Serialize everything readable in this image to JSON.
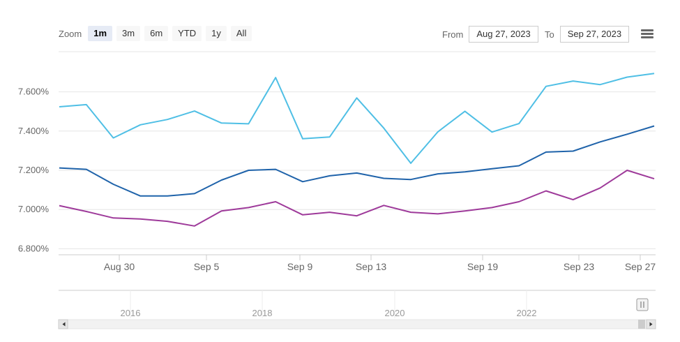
{
  "toolbar": {
    "zoom_label": "Zoom",
    "buttons": [
      "1m",
      "3m",
      "6m",
      "YTD",
      "1y",
      "All"
    ],
    "active": "1m",
    "from_label": "From",
    "from_value": "Aug 27, 2023",
    "to_label": "To",
    "to_value": "Sep 27, 2023",
    "menu_icon": "hamburger-menu-icon"
  },
  "chart_data": {
    "type": "line",
    "ylim": [
      6.8,
      7.8
    ],
    "yticks": [
      "6.800%",
      "7.000%",
      "7.200%",
      "7.400%",
      "7.600%"
    ],
    "ytick_values": [
      6.8,
      7.0,
      7.2,
      7.4,
      7.6
    ],
    "xticks": [
      "Aug 30",
      "Sep 5",
      "Sep 9",
      "Sep 13",
      "Sep 19",
      "Sep 23",
      "Sep 27"
    ],
    "grid": true,
    "series": [
      {
        "color": "#4fbfe5",
        "values": [
          7.524,
          7.535,
          7.365,
          7.432,
          7.459,
          7.502,
          7.441,
          7.437,
          7.673,
          7.361,
          7.37,
          7.569,
          7.415,
          7.236,
          7.396,
          7.501,
          7.395,
          7.438,
          7.628,
          7.655,
          7.637,
          7.675,
          7.694
        ]
      },
      {
        "color": "#1f63aa",
        "values": [
          7.212,
          7.205,
          7.129,
          7.069,
          7.069,
          7.081,
          7.15,
          7.2,
          7.205,
          7.142,
          7.172,
          7.186,
          7.159,
          7.153,
          7.182,
          7.192,
          7.208,
          7.223,
          7.293,
          7.298,
          7.345,
          7.384,
          7.426
        ]
      },
      {
        "color": "#9e3a9a",
        "values": [
          7.02,
          6.99,
          6.957,
          6.952,
          6.94,
          6.916,
          6.993,
          7.01,
          7.04,
          6.973,
          6.986,
          6.968,
          7.021,
          6.986,
          6.978,
          6.993,
          7.01,
          7.04,
          7.095,
          7.05,
          7.11,
          7.2,
          7.157
        ]
      }
    ],
    "navigator": {
      "labels": [
        "2016",
        "2018",
        "2020",
        "2022"
      ]
    }
  }
}
